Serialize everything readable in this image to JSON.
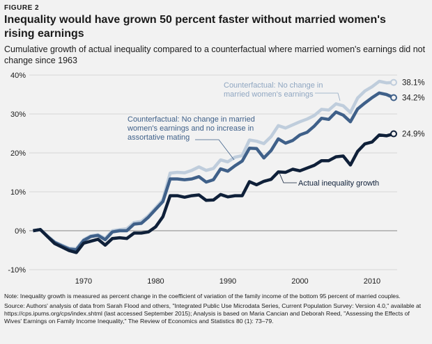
{
  "figure_label": "FIGURE 2",
  "chart_data": {
    "type": "line",
    "title": "Inequality would have grown 50 percent faster without married women's rising earnings",
    "subtitle": "Cumulative growth of actual inequality compared to a counterfactual where married women's earnings did not change since 1963",
    "xlabel": "",
    "ylabel": "",
    "xlim": [
      1963,
      2013
    ],
    "ylim": [
      -10,
      40
    ],
    "x_ticks": [
      "1970",
      "1980",
      "1990",
      "2000",
      "2010"
    ],
    "x_tick_values": [
      1970,
      1980,
      1990,
      2000,
      2010
    ],
    "y_ticks": [
      "40%",
      "30%",
      "20%",
      "10%",
      "0%",
      "-10%"
    ],
    "y_tick_values": [
      40,
      30,
      20,
      10,
      0,
      -10
    ],
    "grid": true,
    "x": [
      1963,
      1964,
      1965,
      1966,
      1967,
      1968,
      1969,
      1970,
      1971,
      1972,
      1973,
      1974,
      1975,
      1976,
      1977,
      1978,
      1979,
      1980,
      1981,
      1982,
      1983,
      1984,
      1985,
      1986,
      1987,
      1988,
      1989,
      1990,
      1991,
      1992,
      1993,
      1994,
      1995,
      1996,
      1997,
      1998,
      1999,
      2000,
      2001,
      2002,
      2003,
      2004,
      2005,
      2006,
      2007,
      2008,
      2009,
      2010,
      2011,
      2012,
      2013
    ],
    "series": [
      {
        "name": "Counterfactual: No change in married women's earnings",
        "color": "#bfcddc",
        "label_color": "#8fa6c1",
        "end_label": "38.1%",
        "values": [
          0,
          0.3,
          -1.3,
          -2.9,
          -3.7,
          -4.5,
          -4.6,
          -2.3,
          -1.3,
          -1.0,
          -2.0,
          0,
          0.3,
          0.5,
          2.1,
          2.4,
          3.9,
          5.9,
          8.0,
          14.8,
          15.0,
          14.9,
          15.5,
          16.4,
          15.5,
          16.0,
          18.2,
          17.7,
          18.9,
          19.3,
          23.3,
          23.0,
          22.4,
          24.2,
          27.0,
          26.4,
          27.2,
          28.0,
          28.7,
          29.6,
          31.2,
          31.0,
          32.6,
          32.1,
          30.4,
          34.1,
          35.9,
          37.0,
          38.4,
          38.0,
          38.1
        ]
      },
      {
        "name": "Counterfactual: No change in married women's earnings and no increase in assortative mating",
        "color": "#3f6089",
        "label_color": "#3f6089",
        "end_label": "34.2%",
        "values": [
          0,
          0.3,
          -1.5,
          -3.0,
          -3.9,
          -4.7,
          -4.9,
          -2.5,
          -1.5,
          -1.2,
          -2.3,
          -0.3,
          0,
          0,
          1.7,
          1.9,
          3.5,
          5.5,
          7.5,
          13.3,
          13.3,
          13.1,
          13.3,
          13.9,
          12.5,
          13.1,
          15.9,
          15.3,
          16.7,
          17.9,
          21.2,
          21.1,
          18.7,
          20.6,
          23.6,
          22.5,
          23.2,
          24.6,
          25.3,
          26.9,
          28.9,
          28.6,
          30.5,
          29.7,
          28.0,
          31.3,
          32.8,
          34.2,
          35.4,
          35.0,
          34.2
        ]
      },
      {
        "name": "Actual inequality growth",
        "color": "#0f2039",
        "label_color": "#0f2039",
        "end_label": "24.9%",
        "values": [
          0,
          0.3,
          -1.5,
          -3.3,
          -4.2,
          -5.1,
          -5.6,
          -3.2,
          -2.7,
          -2.2,
          -3.7,
          -2.0,
          -1.8,
          -2.0,
          -0.6,
          -0.6,
          -0.3,
          1.0,
          3.6,
          9.0,
          9.0,
          8.6,
          9.0,
          9.2,
          7.8,
          7.9,
          9.3,
          8.7,
          9.0,
          9.0,
          12.6,
          11.8,
          12.7,
          13.2,
          15.1,
          15.0,
          15.8,
          15.4,
          16.1,
          16.8,
          18.0,
          18.0,
          19.0,
          19.2,
          16.9,
          20.4,
          22.3,
          22.8,
          24.6,
          24.4,
          24.9
        ]
      }
    ],
    "annotations": [
      {
        "lines": [
          "Counterfactual: No change in",
          "married women's earnings"
        ]
      },
      {
        "lines": [
          "Counterfactual: No change in married",
          "women's earnings and no increase in",
          "assortative mating"
        ]
      },
      {
        "lines": [
          "Actual inequality growth"
        ]
      }
    ]
  },
  "notes": {
    "note": "Note: Inequality growth is measured as percent change in the coefficient of variation of the family income of the bottom 95 percent of married couples.",
    "source": "Source: Authors' analysis of data from Sarah Flood and others, \"Integrated Public Use Microdata Series, Current Population Survey: Version 4.0,\" available at https://cps.ipums.org/cps/index.shtml (last accessed September 2015); Analysis is based on Maria Cancian and Deborah Reed, \"Assessing the Effects of Wives' Earnings on Family Income Inequality,\" The Review of Economics and Statistics 80 (1): 73–79."
  }
}
